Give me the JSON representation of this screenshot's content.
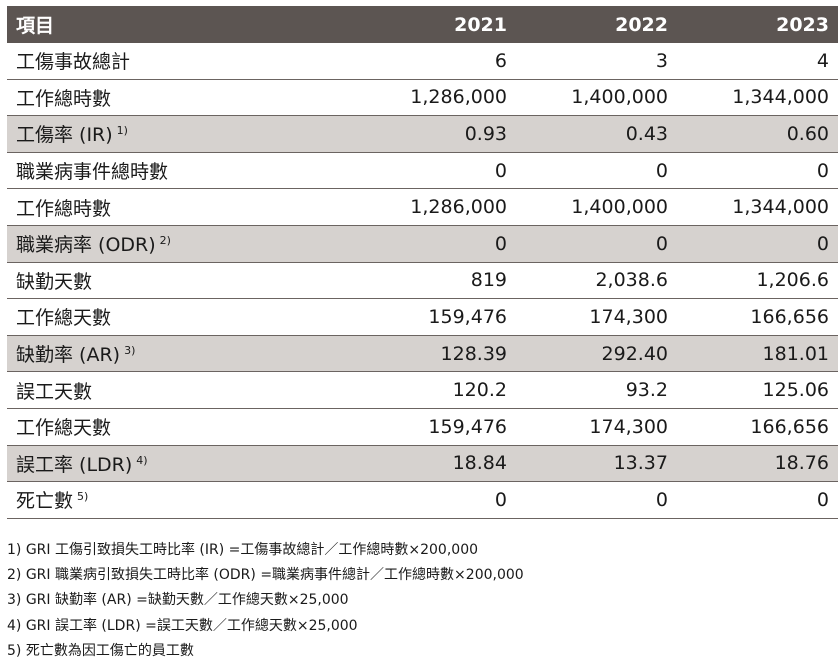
{
  "table": {
    "header": {
      "label": "項目",
      "years": [
        "2021",
        "2022",
        "2023"
      ]
    },
    "rows": [
      {
        "label": "工傷事故總計",
        "note": "",
        "values": [
          "6",
          "3",
          "4"
        ],
        "shaded": false
      },
      {
        "label": "工作總時數",
        "note": "",
        "values": [
          "1,286,000",
          "1,400,000",
          "1,344,000"
        ],
        "shaded": false
      },
      {
        "label": "工傷率 (IR)",
        "note": "1)",
        "values": [
          "0.93",
          "0.43",
          "0.60"
        ],
        "shaded": true
      },
      {
        "label": "職業病事件總時數",
        "note": "",
        "values": [
          "0",
          "0",
          "0"
        ],
        "shaded": false
      },
      {
        "label": "工作總時數",
        "note": "",
        "values": [
          "1,286,000",
          "1,400,000",
          "1,344,000"
        ],
        "shaded": false
      },
      {
        "label": "職業病率 (ODR)",
        "note": "2)",
        "values": [
          "0",
          "0",
          "0"
        ],
        "shaded": true
      },
      {
        "label": "缺勤天數",
        "note": "",
        "values": [
          "819",
          "2,038.6",
          "1,206.6"
        ],
        "shaded": false
      },
      {
        "label": "工作總天數",
        "note": "",
        "values": [
          "159,476",
          "174,300",
          "166,656"
        ],
        "shaded": false
      },
      {
        "label": "缺勤率 (AR)",
        "note": "3)",
        "values": [
          "128.39",
          "292.40",
          "181.01"
        ],
        "shaded": true
      },
      {
        "label": "誤工天數",
        "note": "",
        "values": [
          "120.2",
          "93.2",
          "125.06"
        ],
        "shaded": false
      },
      {
        "label": "工作總天數",
        "note": "",
        "values": [
          "159,476",
          "174,300",
          "166,656"
        ],
        "shaded": false
      },
      {
        "label": "誤工率 (LDR)",
        "note": "4)",
        "values": [
          "18.84",
          "13.37",
          "18.76"
        ],
        "shaded": true
      },
      {
        "label": "死亡數",
        "note": "5)",
        "values": [
          "0",
          "0",
          "0"
        ],
        "shaded": false
      }
    ]
  },
  "notes": [
    "1) GRI 工傷引致損失工時比率 (IR) =工傷事故總計／工作總時數×200,000",
    "2) GRI 職業病引致損失工時比率 (ODR) =職業病事件總計／工作總時數×200,000",
    "3) GRI 缺勤率 (AR) =缺勤天數／工作總天數×25,000",
    "4) GRI 誤工率 (LDR) =誤工天數／工作總天數×25,000",
    "5) 死亡數為因工傷亡的員工數"
  ]
}
